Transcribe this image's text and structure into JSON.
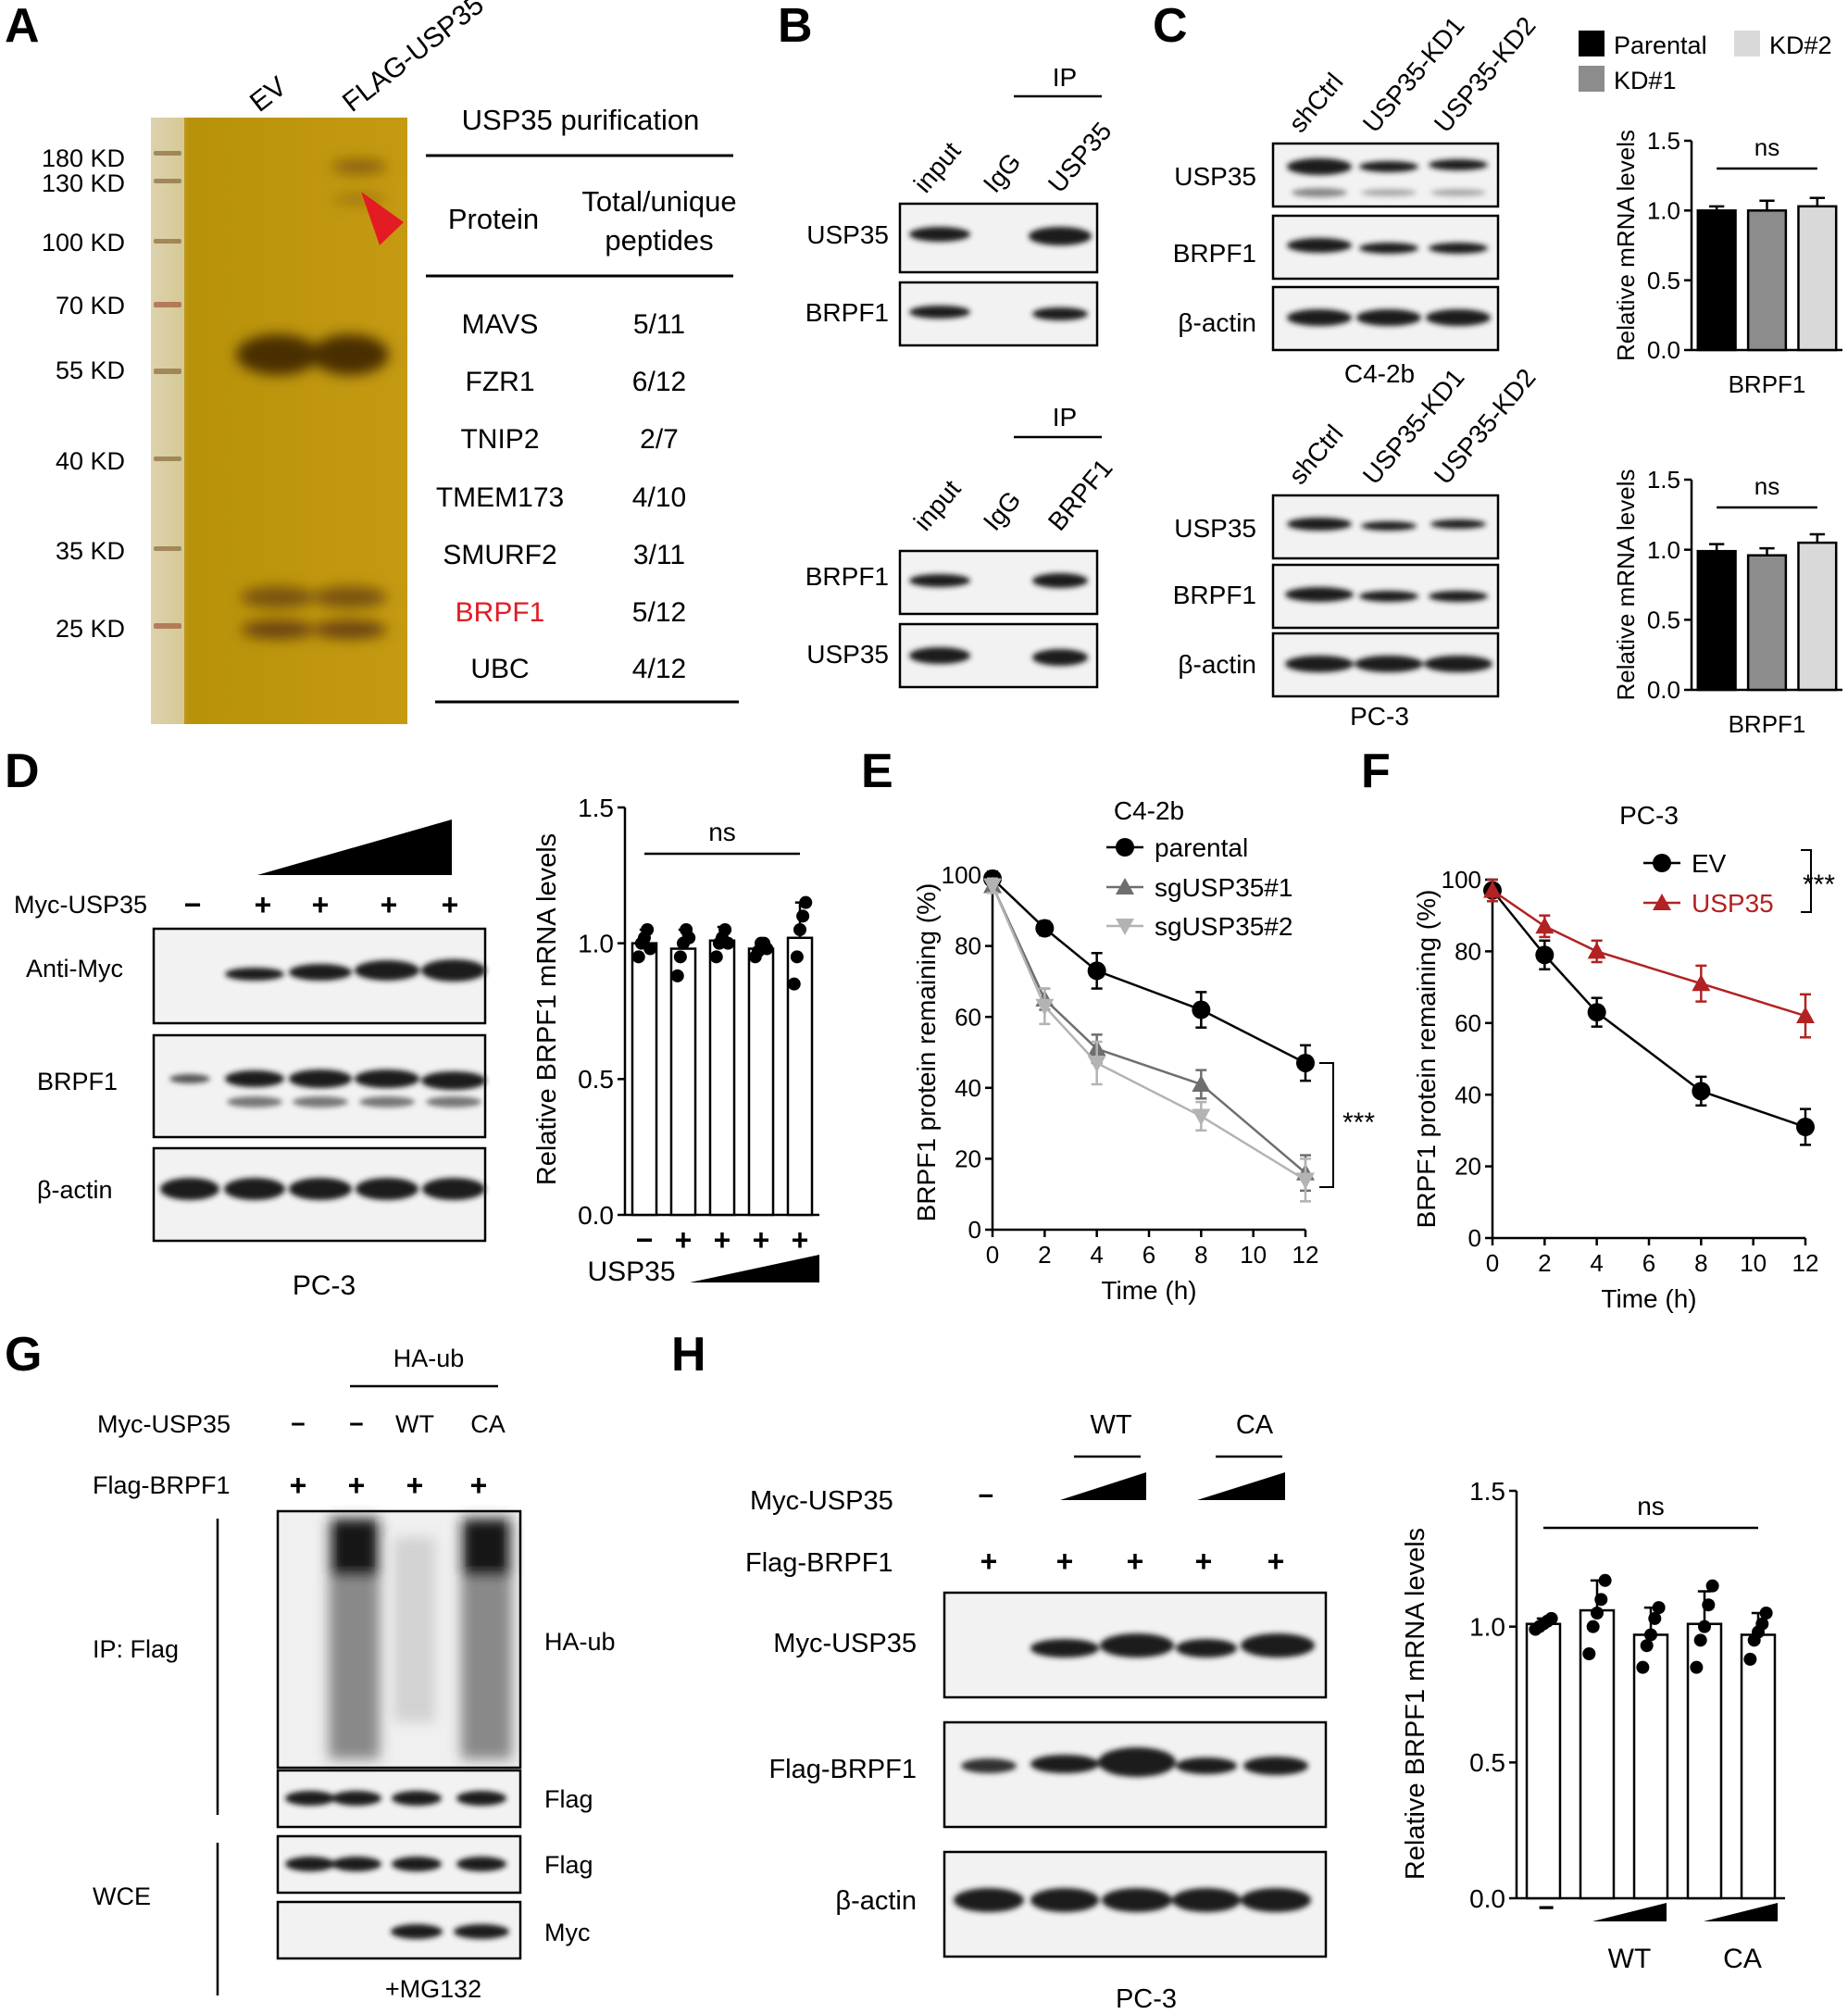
{
  "panel_letters": [
    "A",
    "B",
    "C",
    "D",
    "E",
    "F",
    "G",
    "H"
  ],
  "panelA": {
    "lane_labels": [
      "EV",
      "FLAG-USP35"
    ],
    "markers": [
      "180 KD",
      "130 KD",
      "100 KD",
      "70 KD",
      "55 KD",
      "40 KD",
      "35 KD",
      "25 KD"
    ],
    "table_title": "USP35 purification",
    "headers": [
      "Protein",
      "Total/unique",
      "peptides"
    ],
    "rows": [
      [
        "MAVS",
        "5/11"
      ],
      [
        "FZR1",
        "6/12"
      ],
      [
        "TNIP2",
        "2/7"
      ],
      [
        "TMEM173",
        "4/10"
      ],
      [
        "SMURF2",
        "3/11"
      ],
      [
        "BRPF1",
        "5/12"
      ],
      [
        "UBC",
        "4/12"
      ]
    ],
    "highlight_color": "#e31b23"
  },
  "panelB": {
    "ip": "IP",
    "top": {
      "lanes": [
        "input",
        "IgG",
        "USP35"
      ],
      "rows": [
        "USP35",
        "BRPF1"
      ]
    },
    "bottom": {
      "lanes": [
        "input",
        "IgG",
        "BRPF1"
      ],
      "rows": [
        "BRPF1",
        "USP35"
      ]
    }
  },
  "panelC": {
    "top": {
      "lanes": [
        "shCtrl",
        "USP35-KD1",
        "USP35-KD2"
      ],
      "rows": [
        "USP35",
        "BRPF1",
        "β-actin"
      ],
      "cell": "C4-2b"
    },
    "bottom": {
      "lanes": [
        "shCtrl",
        "USP35-KD1",
        "USP35-KD2"
      ],
      "rows": [
        "USP35",
        "BRPF1",
        "β-actin"
      ],
      "cell": "PC-3"
    },
    "legend": [
      "Parental",
      "KD#2",
      "KD#1"
    ],
    "ylabel": "Relative mRNA levels",
    "xlabel": "BRPF1",
    "ns": "ns"
  },
  "panelD": {
    "myc_label": "Myc-USP35",
    "signs": [
      "−",
      "+",
      "+",
      "+",
      "+"
    ],
    "rows": [
      "Anti-Myc",
      "BRPF1",
      "β-actin"
    ],
    "cell": "PC-3",
    "chart_ylabel": "Relative BRPF1 mRNA levels",
    "chart_xlabel": "USP35",
    "ns": "ns"
  },
  "panelG": {
    "haub": "HA-ub",
    "myc_label": "Myc-USP35",
    "myc_signs": [
      "−",
      "−",
      "WT",
      "CA"
    ],
    "flag_label": "Flag-BRPF1",
    "flag_signs": [
      "+",
      "+",
      "+",
      "+"
    ],
    "ip": "IP: Flag",
    "wce": "WCE",
    "right_labels": [
      "HA-ub",
      "Flag",
      "Flag",
      "Myc"
    ],
    "bottom": "+MG132"
  },
  "panelH": {
    "wt": "WT",
    "ca": "CA",
    "myc_label": "Myc-USP35",
    "myc_minus": "−",
    "flag_label": "Flag-BRPF1",
    "flag_signs": [
      "+",
      "+",
      "+",
      "+",
      "+"
    ],
    "rows": [
      "Myc-USP35",
      "Flag-BRPF1",
      "β-actin"
    ],
    "cell": "PC-3",
    "chart_ylabel": "Relative BRPF1 mRNA levels",
    "chart_minus": "−",
    "chart_groups": [
      "WT",
      "CA"
    ],
    "ns": "ns"
  },
  "chart_data": [
    {
      "id": "C-top",
      "type": "bar",
      "title": "",
      "categories": [
        "Parental",
        "KD#1",
        "KD#2"
      ],
      "values": [
        1.0,
        1.0,
        1.03
      ],
      "errors": [
        0.03,
        0.07,
        0.06
      ],
      "colors": [
        "#000000",
        "#8c8c8c",
        "#d9d9d9"
      ],
      "ylabel": "Relative mRNA levels",
      "xlabel": "BRPF1",
      "ylim": [
        0,
        1.5
      ],
      "yticks": [
        "0.0",
        "0.5",
        "1.0",
        "1.5"
      ],
      "annotation": "ns"
    },
    {
      "id": "C-bottom",
      "type": "bar",
      "title": "",
      "categories": [
        "Parental",
        "KD#1",
        "KD#2"
      ],
      "values": [
        0.99,
        0.96,
        1.05
      ],
      "errors": [
        0.05,
        0.05,
        0.06
      ],
      "colors": [
        "#000000",
        "#8c8c8c",
        "#d9d9d9"
      ],
      "ylabel": "Relative mRNA levels",
      "xlabel": "BRPF1",
      "ylim": [
        0,
        1.5
      ],
      "yticks": [
        "0.0",
        "0.5",
        "1.0",
        "1.5"
      ],
      "annotation": "ns"
    },
    {
      "id": "D",
      "type": "bar",
      "categories": [
        "−",
        "+",
        "+",
        "+",
        "+"
      ],
      "values": [
        1.0,
        0.98,
        1.01,
        0.98,
        1.02
      ],
      "errors": [
        0.05,
        0.07,
        0.05,
        0.03,
        0.13
      ],
      "points": [
        [
          0.95,
          1.0,
          1.02,
          1.05,
          0.98
        ],
        [
          0.88,
          0.95,
          1.0,
          1.05,
          1.02
        ],
        [
          0.95,
          1.0,
          1.02,
          1.05,
          1.0
        ],
        [
          0.95,
          0.97,
          1.0,
          1.0,
          0.98
        ],
        [
          0.85,
          0.95,
          1.05,
          1.1,
          1.15
        ]
      ],
      "ylabel": "Relative BRPF1 mRNA levels",
      "xlabel": "USP35",
      "ylim": [
        0,
        1.5
      ],
      "yticks": [
        "0.0",
        "0.5",
        "1.0",
        "1.5"
      ],
      "annotation": "ns"
    },
    {
      "id": "E",
      "type": "line",
      "title": "C4-2b",
      "x": [
        0,
        2,
        4,
        8,
        12
      ],
      "series": [
        {
          "name": "parental",
          "values": [
            99,
            85,
            73,
            62,
            47
          ],
          "errors": [
            2,
            2,
            5,
            5,
            5
          ],
          "color": "#000000",
          "marker": "circle"
        },
        {
          "name": "sgUSP35#1",
          "values": [
            97,
            65,
            51,
            41,
            16
          ],
          "errors": [
            2,
            3,
            4,
            4,
            5
          ],
          "color": "#6e6e6e",
          "marker": "triangle-up"
        },
        {
          "name": "sgUSP35#2",
          "values": [
            97,
            63,
            47,
            32,
            14
          ],
          "errors": [
            2,
            5,
            6,
            4,
            6
          ],
          "color": "#b3b3b3",
          "marker": "triangle-down"
        }
      ],
      "xlabel": "Time (h)",
      "ylabel": "BRPF1 protein remaining (%)",
      "xlim": [
        0,
        12
      ],
      "ylim": [
        0,
        100
      ],
      "xticks": [
        "0",
        "2",
        "4",
        "6",
        "8",
        "10",
        "12"
      ],
      "yticks": [
        "0",
        "20",
        "40",
        "60",
        "80",
        "100"
      ],
      "annotation": "***"
    },
    {
      "id": "F",
      "type": "line",
      "title": "PC-3",
      "x": [
        0,
        2,
        4,
        8,
        12
      ],
      "series": [
        {
          "name": "EV",
          "values": [
            97,
            79,
            63,
            41,
            31
          ],
          "errors": [
            3,
            4,
            4,
            4,
            5
          ],
          "color": "#000000",
          "marker": "circle"
        },
        {
          "name": "USP35",
          "values": [
            97,
            87,
            80,
            71,
            62
          ],
          "errors": [
            3,
            3,
            3,
            5,
            6
          ],
          "color": "#b22222",
          "marker": "triangle-up"
        }
      ],
      "xlabel": "Time (h)",
      "ylabel": "BRPF1 protein remaining (%)",
      "xlim": [
        0,
        12
      ],
      "ylim": [
        0,
        100
      ],
      "xticks": [
        "0",
        "2",
        "4",
        "6",
        "8",
        "10",
        "12"
      ],
      "yticks": [
        "0",
        "20",
        "40",
        "60",
        "80",
        "100"
      ],
      "annotation": "***"
    },
    {
      "id": "H",
      "type": "bar",
      "categories": [
        "−",
        "WT-low",
        "WT-high",
        "CA-low",
        "CA-high"
      ],
      "values": [
        1.01,
        1.06,
        0.97,
        1.01,
        0.97
      ],
      "errors": [
        0.02,
        0.11,
        0.1,
        0.12,
        0.08
      ],
      "points": [
        [
          0.99,
          1.0,
          1.01,
          1.02,
          1.03
        ],
        [
          0.9,
          1.0,
          1.05,
          1.1,
          1.17
        ],
        [
          0.85,
          0.93,
          0.97,
          1.03,
          1.07
        ],
        [
          0.85,
          0.95,
          1.0,
          1.08,
          1.15
        ],
        [
          0.88,
          0.95,
          0.98,
          1.01,
          1.05
        ]
      ],
      "ylabel": "Relative BRPF1 mRNA levels",
      "ylim": [
        0,
        1.5
      ],
      "yticks": [
        "0.0",
        "0.5",
        "1.0",
        "1.5"
      ],
      "annotation": "ns"
    }
  ]
}
